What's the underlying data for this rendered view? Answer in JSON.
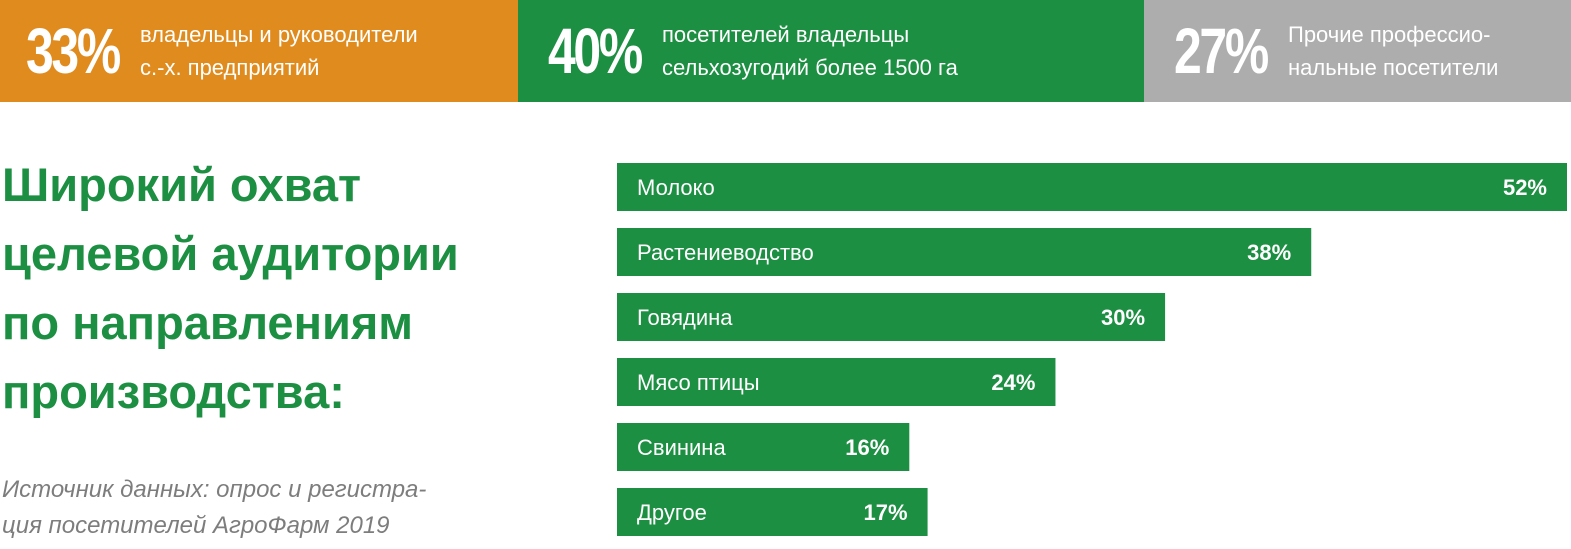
{
  "stats": [
    {
      "value": "33%",
      "text": "владельцы и руководители\nс.-х. предприятий",
      "color": "#e08b1e"
    },
    {
      "value": "40%",
      "text": "посетителей владельцы\nсельхозугодий более 1500 га",
      "color": "#1c8f42"
    },
    {
      "value": "27%",
      "text": "Прочие профессио-\nнальные посетители",
      "color": "#adadad"
    }
  ],
  "headline": "Широкий охват\nцелевой аудитории\nпо направлениям\nпроизводства:",
  "source": "Источник данных: опрос и регистра-\nция посетителей АгроФарм 2019",
  "chart_data": {
    "type": "bar",
    "orientation": "horizontal",
    "categories": [
      "Молоко",
      "Растениеводство",
      "Говядина",
      "Мясо птицы",
      "Свинина",
      "Другое"
    ],
    "values": [
      52,
      38,
      30,
      24,
      16,
      17
    ],
    "value_labels": [
      "52%",
      "38%",
      "30%",
      "24%",
      "16%",
      "17%"
    ],
    "color": "#1c8f42",
    "xlim": [
      0,
      52
    ],
    "grid": false
  }
}
